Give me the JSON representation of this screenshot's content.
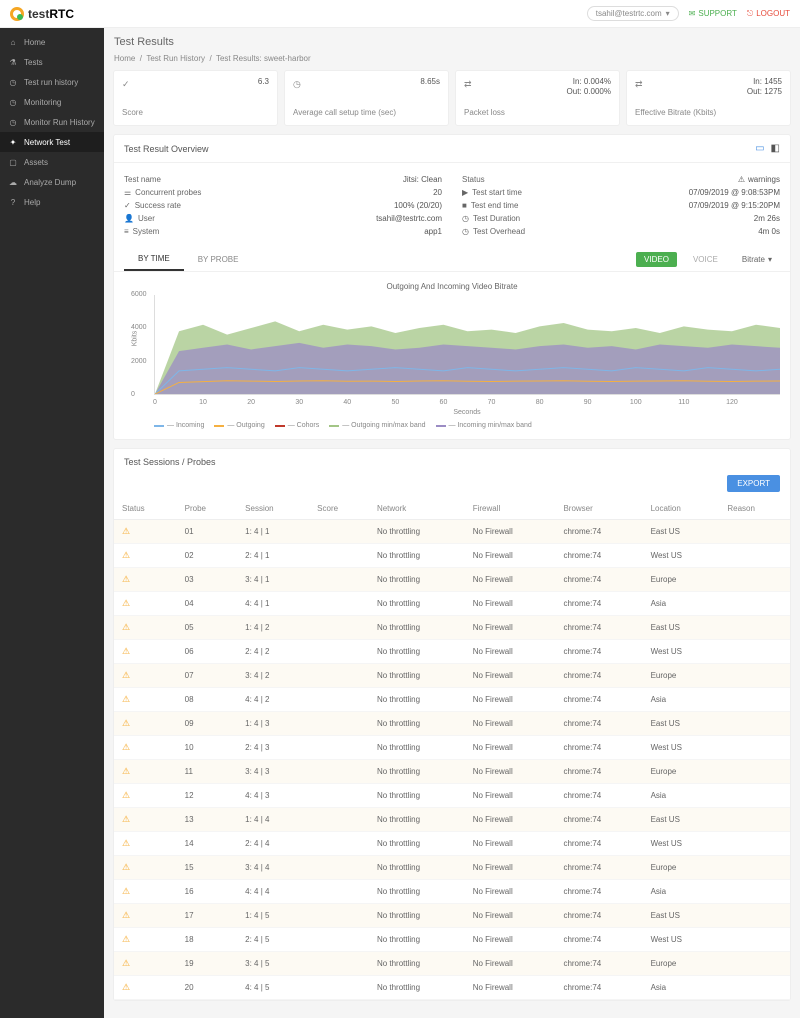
{
  "brand": {
    "name_a": "test",
    "name_b": "RTC"
  },
  "topbar": {
    "user": "tsahil@testrtc.com",
    "support": "SUPPORT",
    "logout": "LOGOUT"
  },
  "sidebar": {
    "items": [
      {
        "label": "Home",
        "icon": "home"
      },
      {
        "label": "Tests",
        "icon": "flask"
      },
      {
        "label": "Test run history",
        "icon": "clock"
      },
      {
        "label": "Monitoring",
        "icon": "clock"
      },
      {
        "label": "Monitor Run History",
        "icon": "clock"
      },
      {
        "label": "Network Test",
        "icon": "net",
        "active": true
      },
      {
        "label": "Assets",
        "icon": "box"
      },
      {
        "label": "Analyze Dump",
        "icon": "cloud"
      },
      {
        "label": "Help",
        "icon": "help"
      }
    ]
  },
  "page": {
    "title": "Test Results"
  },
  "breadcrumb": {
    "a": "Home",
    "b": "Test Run History",
    "c": "Test Results: sweet-harbor"
  },
  "cards": {
    "score": {
      "value": "6.3",
      "label": "Score"
    },
    "setup": {
      "value": "8.65s",
      "label": "Average call setup time (sec)"
    },
    "loss": {
      "in": "In: 0.004%",
      "out": "Out: 0.000%",
      "label": "Packet loss"
    },
    "bitrate": {
      "in": "In: 1455",
      "out": "Out: 1275",
      "label": "Effective Bitrate (Kbits)"
    }
  },
  "overview": {
    "title": "Test Result Overview",
    "left": {
      "test_name_k": "Test name",
      "test_name_v": "Jitsi: Clean",
      "probes_k": "Concurrent probes",
      "probes_v": "20",
      "success_k": "Success rate",
      "success_v": "100% (20/20)",
      "user_k": "User",
      "user_v": "tsahil@testrtc.com",
      "system_k": "System",
      "system_v": "app1"
    },
    "right": {
      "status_k": "Status",
      "status_v": "warnings",
      "start_k": "Test start time",
      "start_v": "07/09/2019 @ 9:08:53PM",
      "end_k": "Test end time",
      "end_v": "07/09/2019 @ 9:15:20PM",
      "dur_k": "Test Duration",
      "dur_v": "2m 26s",
      "ovh_k": "Test Overhead",
      "ovh_v": "4m 0s"
    }
  },
  "chart": {
    "tab_time": "BY TIME",
    "tab_probe": "BY PROBE",
    "video": "VIDEO",
    "voice": "VOICE",
    "drop": "Bitrate",
    "title": "Outgoing And Incoming Video Bitrate",
    "ylabel": "Kbits",
    "xlabel": "Seconds",
    "ylim": [
      0,
      6000
    ],
    "yticks": [
      0,
      2000,
      4000,
      6000
    ],
    "xlim": [
      0,
      130
    ],
    "xticks": [
      0,
      10,
      20,
      30,
      40,
      50,
      60,
      70,
      80,
      90,
      100,
      110,
      120
    ],
    "colors": {
      "incoming": "#7eb6e8",
      "outgoing": "#f5b041",
      "cohors": "#c0392b",
      "out_band": "#a3c586",
      "in_band": "#9b8cc4",
      "background": "#ffffff"
    },
    "legend": {
      "incoming": "Incoming",
      "outgoing": "Outgoing",
      "cohors": "Cohors",
      "out_band": "Outgoing min/max band",
      "in_band": "Incoming min/max band"
    },
    "series": {
      "out_band_top": [
        0,
        3800,
        4200,
        3600,
        4000,
        4400,
        3800,
        4200,
        3900,
        4100,
        3700,
        4000,
        4200,
        3800,
        3900,
        3700,
        4100,
        4300,
        3900,
        3800,
        4000,
        3700,
        4100,
        3900,
        3800,
        4200,
        4000
      ],
      "out_band_bottom": [
        0,
        2800,
        2600,
        2700,
        2900,
        2800,
        2700,
        2800,
        2900,
        2700,
        2800,
        2700,
        2900,
        2800,
        2700,
        2800,
        2900,
        2800,
        2700,
        2900,
        2800,
        2700,
        2800,
        2900,
        2800,
        2700,
        2800
      ],
      "in_band_top": [
        0,
        2600,
        2800,
        3000,
        2700,
        2900,
        3100,
        2800,
        3000,
        2900,
        2700,
        2800,
        3000,
        2900,
        2800,
        2700,
        2900,
        3000,
        2800,
        2900,
        2700,
        3000,
        2900,
        2800,
        3000,
        2900,
        2800
      ],
      "in_band_bottom": [
        0,
        1200,
        1300,
        1400,
        1300,
        1200,
        1400,
        1300,
        1200,
        1300,
        1400,
        1300,
        1200,
        1400,
        1300,
        1200,
        1300,
        1400,
        1300,
        1200,
        1400,
        1300,
        1200,
        1400,
        1300,
        1200,
        1300
      ],
      "incoming": [
        0,
        1400,
        1500,
        1600,
        1500,
        1400,
        1600,
        1500,
        1400,
        1500,
        1600,
        1500,
        1400,
        1600,
        1500,
        1400,
        1500,
        1600,
        1500,
        1400,
        1600,
        1500,
        1400,
        1600,
        1500,
        1400,
        1500
      ],
      "outgoing": [
        0,
        700,
        750,
        800,
        780,
        760,
        790,
        800,
        770,
        780,
        760,
        790,
        800,
        770,
        760,
        780,
        790,
        800,
        770,
        760,
        780,
        790,
        800,
        770,
        760,
        780,
        790
      ]
    }
  },
  "sessions": {
    "title": "Test Sessions / Probes",
    "export": "EXPORT",
    "columns": [
      "Status",
      "Probe",
      "Session",
      "Score",
      "Network",
      "Firewall",
      "Browser",
      "Location",
      "Reason"
    ],
    "rows": [
      [
        "warn",
        "01",
        "1: 4 | 1",
        "",
        "No throttling",
        "No Firewall",
        "chrome:74",
        "East US",
        ""
      ],
      [
        "warn",
        "02",
        "2: 4 | 1",
        "",
        "No throttling",
        "No Firewall",
        "chrome:74",
        "West US",
        ""
      ],
      [
        "warn",
        "03",
        "3: 4 | 1",
        "",
        "No throttling",
        "No Firewall",
        "chrome:74",
        "Europe",
        ""
      ],
      [
        "warn",
        "04",
        "4: 4 | 1",
        "",
        "No throttling",
        "No Firewall",
        "chrome:74",
        "Asia",
        ""
      ],
      [
        "warn",
        "05",
        "1: 4 | 2",
        "",
        "No throttling",
        "No Firewall",
        "chrome:74",
        "East US",
        ""
      ],
      [
        "warn",
        "06",
        "2: 4 | 2",
        "",
        "No throttling",
        "No Firewall",
        "chrome:74",
        "West US",
        ""
      ],
      [
        "warn",
        "07",
        "3: 4 | 2",
        "",
        "No throttling",
        "No Firewall",
        "chrome:74",
        "Europe",
        ""
      ],
      [
        "warn",
        "08",
        "4: 4 | 2",
        "",
        "No throttling",
        "No Firewall",
        "chrome:74",
        "Asia",
        ""
      ],
      [
        "warn",
        "09",
        "1: 4 | 3",
        "",
        "No throttling",
        "No Firewall",
        "chrome:74",
        "East US",
        ""
      ],
      [
        "warn",
        "10",
        "2: 4 | 3",
        "",
        "No throttling",
        "No Firewall",
        "chrome:74",
        "West US",
        ""
      ],
      [
        "warn",
        "11",
        "3: 4 | 3",
        "",
        "No throttling",
        "No Firewall",
        "chrome:74",
        "Europe",
        ""
      ],
      [
        "warn",
        "12",
        "4: 4 | 3",
        "",
        "No throttling",
        "No Firewall",
        "chrome:74",
        "Asia",
        ""
      ],
      [
        "warn",
        "13",
        "1: 4 | 4",
        "",
        "No throttling",
        "No Firewall",
        "chrome:74",
        "East US",
        ""
      ],
      [
        "warn",
        "14",
        "2: 4 | 4",
        "",
        "No throttling",
        "No Firewall",
        "chrome:74",
        "West US",
        ""
      ],
      [
        "warn",
        "15",
        "3: 4 | 4",
        "",
        "No throttling",
        "No Firewall",
        "chrome:74",
        "Europe",
        ""
      ],
      [
        "warn",
        "16",
        "4: 4 | 4",
        "",
        "No throttling",
        "No Firewall",
        "chrome:74",
        "Asia",
        ""
      ],
      [
        "warn",
        "17",
        "1: 4 | 5",
        "",
        "No throttling",
        "No Firewall",
        "chrome:74",
        "East US",
        ""
      ],
      [
        "warn",
        "18",
        "2: 4 | 5",
        "",
        "No throttling",
        "No Firewall",
        "chrome:74",
        "West US",
        ""
      ],
      [
        "warn",
        "19",
        "3: 4 | 5",
        "",
        "No throttling",
        "No Firewall",
        "chrome:74",
        "Europe",
        ""
      ],
      [
        "warn",
        "20",
        "4: 4 | 5",
        "",
        "No throttling",
        "No Firewall",
        "chrome:74",
        "Asia",
        ""
      ]
    ]
  }
}
